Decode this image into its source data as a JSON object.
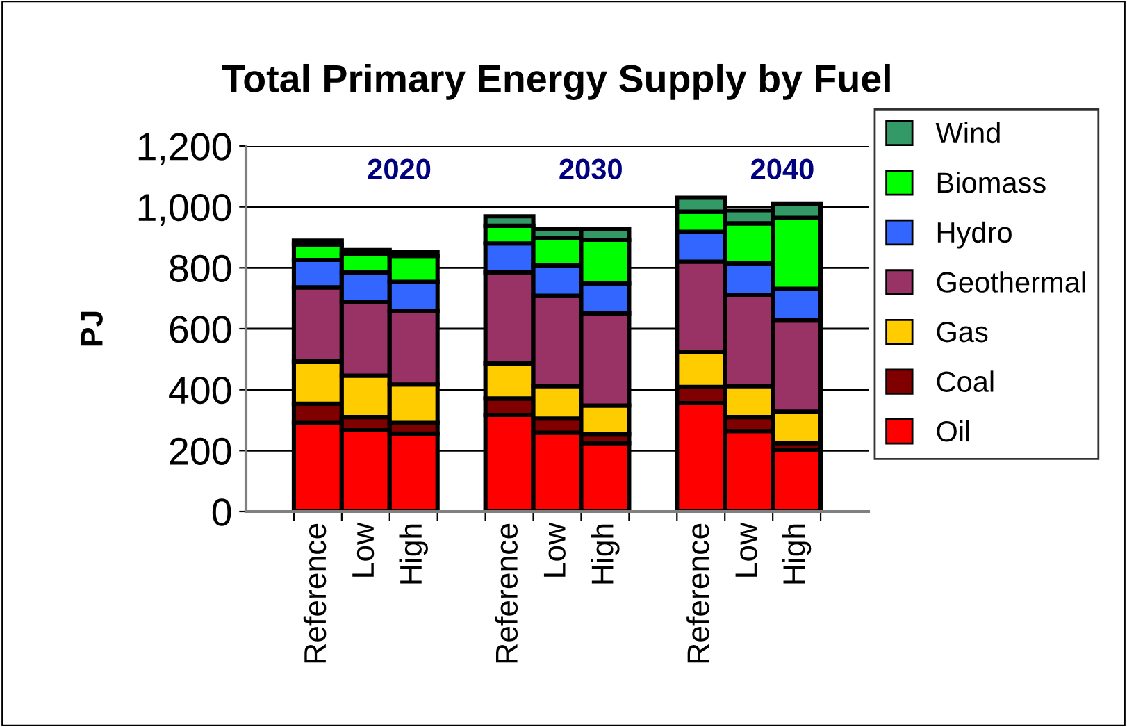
{
  "chart_data": {
    "type": "bar",
    "stacked": true,
    "title": "Total Primary Energy Supply by Fuel",
    "ylabel": "PJ",
    "categories": [
      null,
      "Reference",
      "Low",
      "High",
      null,
      "Reference",
      "Low",
      "High",
      null,
      "Reference",
      "Low",
      "High",
      null
    ],
    "annotations": [
      "2020",
      "2030",
      "2040"
    ],
    "series": [
      {
        "name": "Oil",
        "color": "#ff0000",
        "values": [
          null,
          291,
          267,
          256,
          null,
          317,
          259,
          225,
          null,
          356,
          264,
          202,
          null
        ]
      },
      {
        "name": "Coal",
        "color": "#800000",
        "values": [
          null,
          63,
          43,
          35,
          null,
          54,
          46,
          28,
          null,
          53,
          46,
          23,
          null
        ]
      },
      {
        "name": "Gas",
        "color": "#ffcc00",
        "values": [
          null,
          139,
          136,
          126,
          null,
          115,
          107,
          95,
          null,
          115,
          102,
          103,
          null
        ]
      },
      {
        "name": "Geothermal",
        "color": "#993366",
        "values": [
          null,
          243,
          242,
          240,
          null,
          299,
          296,
          302,
          null,
          296,
          299,
          299,
          null
        ]
      },
      {
        "name": "Hydro",
        "color": "#3366ff",
        "values": [
          null,
          90,
          97,
          97,
          null,
          95,
          100,
          99,
          null,
          98,
          104,
          104,
          null
        ]
      },
      {
        "name": "Biomass",
        "color": "#00ff00",
        "values": [
          null,
          51,
          61,
          85,
          null,
          58,
          89,
          143,
          null,
          66,
          131,
          233,
          null
        ]
      },
      {
        "name": "Wind",
        "color": "#339966",
        "values": [
          null,
          12,
          12,
          12,
          null,
          31,
          30,
          35,
          null,
          46,
          43,
          47,
          null
        ]
      }
    ],
    "ylim": [
      0,
      1200
    ],
    "yticks": [
      0,
      200,
      400,
      600,
      800,
      {
        "value": 1000,
        "label": "1,000"
      },
      {
        "value": 1200,
        "label": "1,200"
      }
    ],
    "grid": "y",
    "legend": "right"
  }
}
